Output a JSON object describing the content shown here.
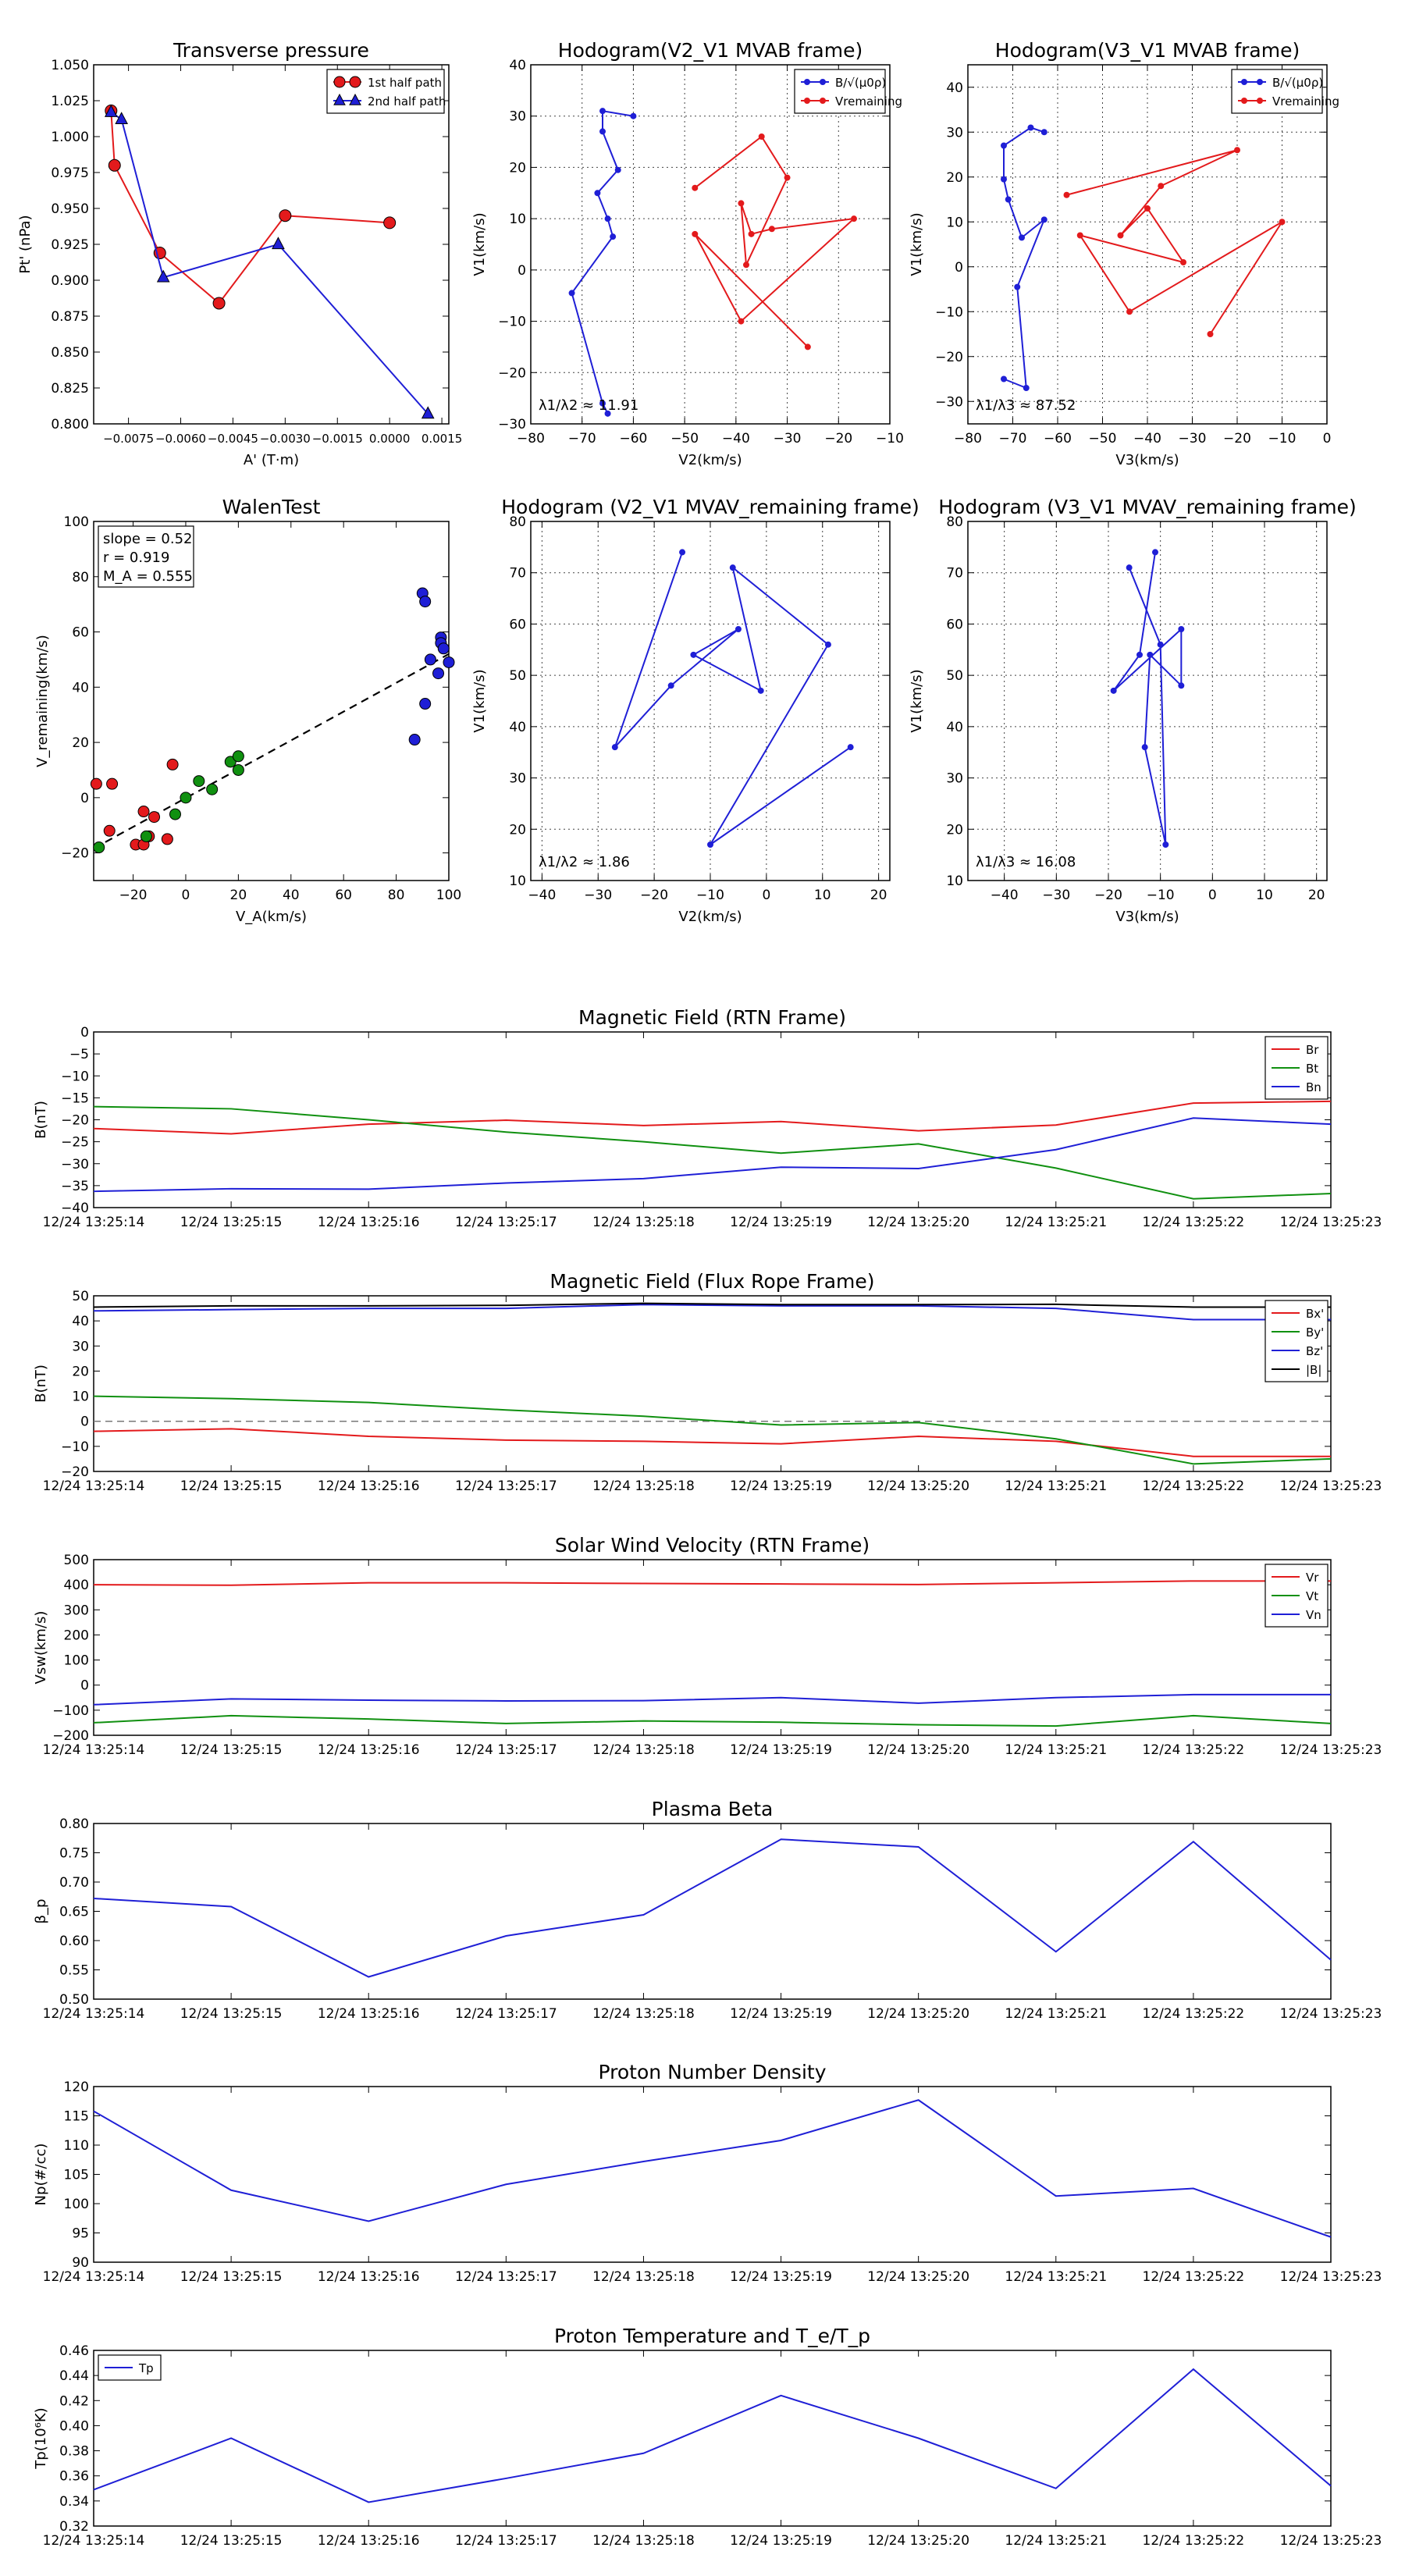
{
  "time_ticks": [
    "12/24 13:25:14",
    "12/24 13:25:15",
    "12/24 13:25:16",
    "12/24 13:25:17",
    "12/24 13:25:18",
    "12/24 13:25:19",
    "12/24 13:25:20",
    "12/24 13:25:21",
    "12/24 13:25:22",
    "12/24 13:25:23"
  ],
  "chart_data": [
    {
      "id": "transverse-pressure",
      "type": "line",
      "title": "Transverse pressure",
      "xlabel": "A' (T·m)",
      "ylabel": "Pt' (nPa)",
      "xlim": [
        -0.0085,
        0.0017
      ],
      "ylim": [
        0.8,
        1.05
      ],
      "xticks": [
        -0.0075,
        -0.006,
        -0.0045,
        -0.003,
        -0.0015,
        0.0,
        0.0015
      ],
      "xtick_labels": [
        "−0.0075",
        "−0.0060",
        "−0.0045",
        "−0.0030",
        "−0.0015",
        "0.0000",
        "0.0015"
      ],
      "yticks": [
        0.8,
        0.825,
        0.85,
        0.875,
        0.9,
        0.925,
        0.95,
        0.975,
        1.0,
        1.025,
        1.05
      ],
      "ytick_labels": [
        "0.800",
        "0.825",
        "0.850",
        "0.875",
        "0.900",
        "0.925",
        "0.950",
        "0.975",
        "1.000",
        "1.025",
        "1.050"
      ],
      "grid": false,
      "legend_position": "top-right",
      "series": [
        {
          "name": "1st half path",
          "color": "#e31a1c",
          "marker": "circle",
          "x": [
            -0.008,
            -0.0079,
            -0.0066,
            -0.0049,
            -0.003,
            0.0
          ],
          "y": [
            1.018,
            0.98,
            0.919,
            0.884,
            0.945,
            0.94
          ]
        },
        {
          "name": "2nd half path",
          "color": "#1f1fd6",
          "marker": "triangle",
          "x": [
            -0.008,
            -0.0077,
            -0.0065,
            -0.0032,
            0.0011
          ],
          "y": [
            1.017,
            1.012,
            0.902,
            0.925,
            0.807
          ]
        }
      ]
    },
    {
      "id": "hodogram-v2-v1-mvab",
      "type": "line",
      "title": "Hodogram(V2_V1 MVAB frame)",
      "xlabel": "V2(km/s)",
      "ylabel": "V1(km/s)",
      "xlim": [
        -80,
        -10
      ],
      "ylim": [
        -30,
        40
      ],
      "xticks": [
        -80,
        -70,
        -60,
        -50,
        -40,
        -30,
        -20,
        -10
      ],
      "yticks": [
        -30,
        -20,
        -10,
        0,
        10,
        20,
        30,
        40
      ],
      "grid": true,
      "legend_position": "top-right",
      "annotation": "λ1/λ2 ≈ 11.91",
      "series": [
        {
          "name": "B/√(μ0ρ)",
          "color": "#1f1fd6",
          "x": [
            -60,
            -66,
            -66,
            -63,
            -67,
            -65,
            -64,
            -72,
            -66,
            -65
          ],
          "y": [
            30,
            31,
            27,
            19.5,
            15,
            10,
            6.5,
            -4.5,
            -26,
            -28
          ]
        },
        {
          "name": "Vremaining",
          "color": "#e31a1c",
          "x": [
            -48,
            -35,
            -30,
            -38,
            -39,
            -37,
            -33,
            -17,
            -39,
            -48,
            -26
          ],
          "y": [
            16,
            26,
            18,
            1,
            13,
            7,
            8,
            10,
            -10,
            7,
            -15
          ]
        }
      ]
    },
    {
      "id": "hodogram-v3-v1-mvab",
      "type": "line",
      "title": "Hodogram(V3_V1 MVAB frame)",
      "xlabel": "V3(km/s)",
      "ylabel": "V1(km/s)",
      "xlim": [
        -80,
        0
      ],
      "ylim": [
        -35,
        45
      ],
      "xticks": [
        -80,
        -70,
        -60,
        -50,
        -40,
        -30,
        -20,
        -10,
        0
      ],
      "yticks": [
        -30,
        -20,
        -10,
        0,
        10,
        20,
        30,
        40
      ],
      "grid": true,
      "legend_position": "top-right",
      "annotation": "λ1/λ3 ≈ 87.52",
      "series": [
        {
          "name": "B/√(μ0ρ)",
          "color": "#1f1fd6",
          "x": [
            -63,
            -66,
            -72,
            -72,
            -71,
            -68,
            -63,
            -69,
            -67,
            -72
          ],
          "y": [
            30,
            31,
            27,
            19.5,
            15,
            6.5,
            10.5,
            -4.5,
            -27,
            -25
          ]
        },
        {
          "name": "Vremaining",
          "color": "#e31a1c",
          "x": [
            -58,
            -20,
            -37,
            -46,
            -40,
            -32,
            -55,
            -44,
            -10,
            -26
          ],
          "y": [
            16,
            26,
            18,
            7,
            13,
            1,
            7,
            -10,
            10,
            -15
          ]
        }
      ]
    },
    {
      "id": "walen-test",
      "type": "scatter",
      "title": "WalenTest",
      "xlabel": "V_A(km/s)",
      "ylabel": "V_remaining(km/s)",
      "xlim": [
        -35,
        100
      ],
      "ylim": [
        -30,
        100
      ],
      "xticks": [
        -20,
        0,
        20,
        40,
        60,
        80,
        100
      ],
      "yticks": [
        -20,
        0,
        20,
        40,
        60,
        80,
        100
      ],
      "grid": false,
      "stats_box": [
        "slope = 0.52",
        "r = 0.919",
        "M_A = 0.555"
      ],
      "fit_line": {
        "x": [
          -35,
          100
        ],
        "y": [
          -18.4,
          52
        ]
      },
      "series": [
        {
          "name": "red",
          "color": "#e31a1c",
          "x": [
            -34,
            -28,
            -29,
            -19,
            -16,
            -14,
            -16,
            -12,
            -7,
            -5
          ],
          "y": [
            5,
            5,
            -12,
            -17,
            -17,
            -14,
            -5,
            -7,
            -15,
            12
          ]
        },
        {
          "name": "green",
          "color": "#109010",
          "x": [
            -33,
            -15,
            -4,
            0,
            5,
            10,
            17,
            20,
            20
          ],
          "y": [
            -18,
            -14,
            -6,
            0,
            6,
            3,
            13,
            15,
            10
          ]
        },
        {
          "name": "blue",
          "color": "#1f1fd6",
          "x": [
            87,
            90,
            91,
            91,
            93,
            96,
            97,
            97,
            98,
            100
          ],
          "y": [
            21,
            74,
            71,
            34,
            50,
            45,
            58,
            56,
            54,
            49
          ]
        }
      ]
    },
    {
      "id": "hodogram-v2-v1-mvav",
      "type": "line",
      "title": "Hodogram (V2_V1 MVAV_remaining frame)",
      "xlabel": "V2(km/s)",
      "ylabel": "V1(km/s)",
      "xlim": [
        -42,
        22
      ],
      "ylim": [
        10,
        80
      ],
      "xticks": [
        -40,
        -30,
        -20,
        -10,
        0,
        10,
        20
      ],
      "yticks": [
        10,
        20,
        30,
        40,
        50,
        60,
        70,
        80
      ],
      "grid": true,
      "annotation": "λ1/λ2 ≈ 1.86",
      "series": [
        {
          "name": "Vremaining",
          "color": "#1f1fd6",
          "x": [
            -15,
            -27,
            -17,
            -5,
            -13,
            -1,
            -6,
            11,
            -10,
            15
          ],
          "y": [
            74,
            36,
            48,
            59,
            54,
            47,
            71,
            56,
            17,
            36
          ]
        }
      ]
    },
    {
      "id": "hodogram-v3-v1-mvav",
      "type": "line",
      "title": "Hodogram (V3_V1 MVAV_remaining frame)",
      "xlabel": "V3(km/s)",
      "ylabel": "V1(km/s)",
      "xlim": [
        -47,
        22
      ],
      "ylim": [
        10,
        80
      ],
      "xticks": [
        -40,
        -30,
        -20,
        -10,
        0,
        10,
        20
      ],
      "yticks": [
        10,
        20,
        30,
        40,
        50,
        60,
        70,
        80
      ],
      "grid": true,
      "annotation": "λ1/λ3 ≈ 16.08",
      "series": [
        {
          "name": "Vremaining",
          "color": "#1f1fd6",
          "x": [
            -11,
            -14,
            -19,
            -6,
            -6,
            -12,
            -13,
            -9,
            -10,
            -16
          ],
          "y": [
            74,
            54,
            47,
            59,
            48,
            54,
            36,
            17,
            56,
            71
          ]
        }
      ]
    },
    {
      "id": "magnetic-field-rtn",
      "type": "line",
      "title": "Magnetic Field (RTN Frame)",
      "xlabel": "",
      "ylabel": "B(nT)",
      "ylim": [
        -40,
        0
      ],
      "yticks": [
        -40,
        -35,
        -30,
        -25,
        -20,
        -15,
        -10,
        -5,
        0
      ],
      "legend_position": "top-right",
      "series": [
        {
          "name": "Br",
          "color": "#e31a1c",
          "values": [
            -22,
            -23.2,
            -21,
            -20.1,
            -21.3,
            -20.4,
            -22.5,
            -21.2,
            -16.2,
            -15.8
          ]
        },
        {
          "name": "Bt",
          "color": "#109010",
          "values": [
            -17,
            -17.5,
            -20,
            -22.8,
            -25,
            -27.6,
            -25.5,
            -31,
            -38,
            -36.8
          ]
        },
        {
          "name": "Bn",
          "color": "#1f1fd6",
          "values": [
            -36.3,
            -35.7,
            -35.8,
            -34.4,
            -33.4,
            -30.8,
            -31.1,
            -26.8,
            -19.6,
            -21
          ]
        }
      ]
    },
    {
      "id": "magnetic-field-flux-rope",
      "type": "line",
      "title": "Magnetic Field (Flux Rope Frame)",
      "xlabel": "",
      "ylabel": "B(nT)",
      "ylim": [
        -20,
        50
      ],
      "yticks": [
        -20,
        -10,
        0,
        10,
        20,
        30,
        40,
        50
      ],
      "legend_position": "top-right",
      "zero_line": true,
      "series": [
        {
          "name": "Bx'",
          "color": "#e31a1c",
          "values": [
            -4,
            -3,
            -6,
            -7.5,
            -8,
            -9,
            -6,
            -8,
            -14,
            -14
          ]
        },
        {
          "name": "By'",
          "color": "#109010",
          "values": [
            10,
            9,
            7.5,
            4.5,
            2,
            -1.5,
            -0.5,
            -7,
            -17,
            -15
          ]
        },
        {
          "name": "Bz'",
          "color": "#1f1fd6",
          "values": [
            44,
            44.5,
            45,
            45,
            46.5,
            46,
            46,
            45,
            40.5,
            40.5
          ]
        },
        {
          "name": "|B|",
          "color": "#000000",
          "values": [
            45.5,
            46,
            46,
            46.2,
            47,
            46.5,
            46.5,
            46.6,
            45.5,
            45.5
          ]
        }
      ]
    },
    {
      "id": "solar-wind-velocity",
      "type": "line",
      "title": "Solar Wind Velocity (RTN Frame)",
      "xlabel": "",
      "ylabel": "Vsw(km/s)",
      "ylim": [
        -200,
        500
      ],
      "yticks": [
        -200,
        -100,
        0,
        100,
        200,
        300,
        400,
        500
      ],
      "legend_position": "top-right",
      "series": [
        {
          "name": "Vr",
          "color": "#e31a1c",
          "values": [
            400,
            398,
            408,
            408,
            405,
            403,
            401,
            408,
            415,
            415
          ]
        },
        {
          "name": "Vt",
          "color": "#109010",
          "values": [
            -150,
            -122,
            -135,
            -153,
            -143,
            -148,
            -158,
            -163,
            -122,
            -153
          ]
        },
        {
          "name": "Vn",
          "color": "#1f1fd6",
          "values": [
            -78,
            -55,
            -60,
            -63,
            -62,
            -50,
            -72,
            -50,
            -38,
            -38
          ]
        }
      ]
    },
    {
      "id": "plasma-beta",
      "type": "line",
      "title": "Plasma Beta",
      "xlabel": "",
      "ylabel": "β_p",
      "ylim": [
        0.5,
        0.8
      ],
      "yticks": [
        0.5,
        0.55,
        0.6,
        0.65,
        0.7,
        0.75,
        0.8
      ],
      "ytick_labels": [
        "0.50",
        "0.55",
        "0.60",
        "0.65",
        "0.70",
        "0.75",
        "0.80"
      ],
      "series": [
        {
          "name": "β",
          "color": "#1f1fd6",
          "values": [
            0.672,
            0.658,
            0.538,
            0.608,
            0.644,
            0.773,
            0.76,
            0.581,
            0.769,
            0.567
          ]
        }
      ]
    },
    {
      "id": "proton-number-density",
      "type": "line",
      "title": "Proton Number Density",
      "xlabel": "",
      "ylabel": "Np(#/cc)",
      "ylim": [
        90,
        120
      ],
      "yticks": [
        90,
        95,
        100,
        105,
        110,
        115,
        120
      ],
      "series": [
        {
          "name": "Np",
          "color": "#1f1fd6",
          "values": [
            115.8,
            102.3,
            97,
            103.3,
            107.2,
            110.8,
            117.7,
            101.3,
            102.6,
            94.3
          ]
        }
      ]
    },
    {
      "id": "proton-temperature",
      "type": "line",
      "title": "Proton Temperature and T_e/T_p",
      "xlabel": "",
      "ylabel": "Tp(10⁶K)",
      "ylim": [
        0.32,
        0.46
      ],
      "yticks": [
        0.32,
        0.34,
        0.36,
        0.38,
        0.4,
        0.42,
        0.44,
        0.46
      ],
      "ytick_labels": [
        "0.32",
        "0.34",
        "0.36",
        "0.38",
        "0.40",
        "0.42",
        "0.44",
        "0.46"
      ],
      "legend_position": "top-left",
      "series": [
        {
          "name": "Tp",
          "color": "#1f1fd6",
          "values": [
            0.349,
            0.39,
            0.339,
            0.358,
            0.378,
            0.424,
            0.39,
            0.35,
            0.445,
            0.352
          ]
        }
      ]
    }
  ]
}
